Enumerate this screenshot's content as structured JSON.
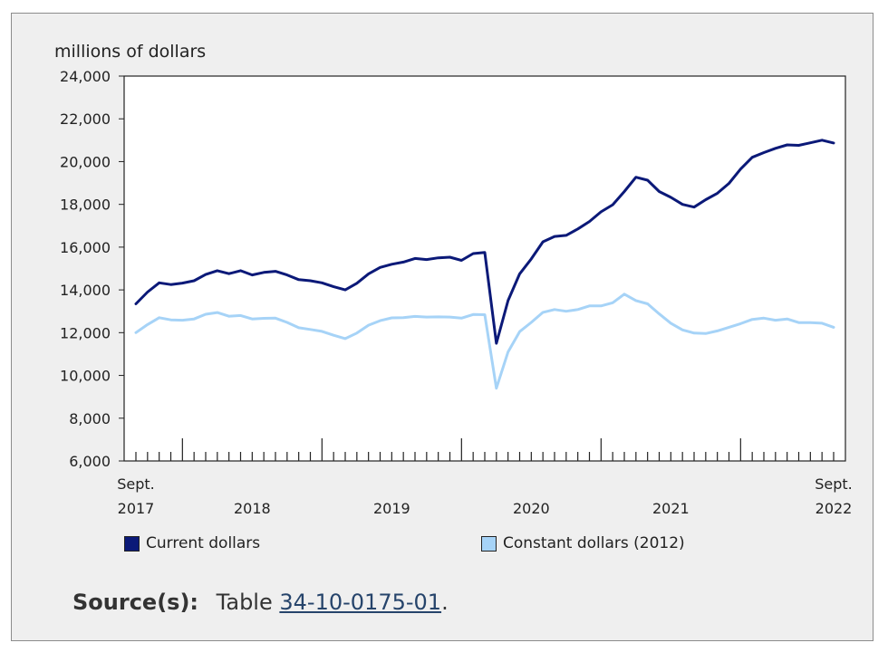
{
  "chart_data": {
    "type": "line",
    "ylabel": "millions of dollars",
    "ylim": [
      6000,
      24000
    ],
    "yticks": [
      6000,
      8000,
      10000,
      12000,
      14000,
      16000,
      18000,
      20000,
      22000,
      24000
    ],
    "ytick_labels": [
      "6,000",
      "8,000",
      "10,000",
      "12,000",
      "14,000",
      "16,000",
      "18,000",
      "20,000",
      "22,000",
      "24,000"
    ],
    "x": [
      "2017-09",
      "2017-10",
      "2017-11",
      "2017-12",
      "2018-01",
      "2018-02",
      "2018-03",
      "2018-04",
      "2018-05",
      "2018-06",
      "2018-07",
      "2018-08",
      "2018-09",
      "2018-10",
      "2018-11",
      "2018-12",
      "2019-01",
      "2019-02",
      "2019-03",
      "2019-04",
      "2019-05",
      "2019-06",
      "2019-07",
      "2019-08",
      "2019-09",
      "2019-10",
      "2019-11",
      "2019-12",
      "2020-01",
      "2020-02",
      "2020-03",
      "2020-04",
      "2020-05",
      "2020-06",
      "2020-07",
      "2020-08",
      "2020-09",
      "2020-10",
      "2020-11",
      "2020-12",
      "2021-01",
      "2021-02",
      "2021-03",
      "2021-04",
      "2021-05",
      "2021-06",
      "2021-07",
      "2021-08",
      "2021-09",
      "2021-10",
      "2021-11",
      "2021-12",
      "2022-01",
      "2022-02",
      "2022-03",
      "2022-04",
      "2022-05",
      "2022-06",
      "2022-07",
      "2022-08",
      "2022-09"
    ],
    "x_tick_labels": [
      {
        "line1": "Sept.",
        "line2": "2017"
      },
      {
        "line1": "",
        "line2": "2018"
      },
      {
        "line1": "",
        "line2": "2019"
      },
      {
        "line1": "",
        "line2": "2020"
      },
      {
        "line1": "",
        "line2": "2021"
      },
      {
        "line1": "Sept.",
        "line2": "2022"
      }
    ],
    "series": [
      {
        "name": "Current dollars",
        "color": "#0b1978",
        "values": [
          13350,
          13900,
          14330,
          14250,
          14320,
          14430,
          14720,
          14900,
          14760,
          14900,
          14700,
          14820,
          14870,
          14700,
          14480,
          14430,
          14330,
          14150,
          14000,
          14310,
          14750,
          15050,
          15200,
          15300,
          15470,
          15420,
          15500,
          15530,
          15380,
          15700,
          15750,
          11500,
          13500,
          14750,
          15450,
          16250,
          16500,
          16550,
          16850,
          17200,
          17650,
          17980,
          18600,
          19270,
          19130,
          18600,
          18330,
          18000,
          17870,
          18220,
          18520,
          18980,
          19650,
          20200,
          20420,
          20620,
          20780,
          20760,
          20880,
          21000,
          20870
        ]
      },
      {
        "name": "Constant dollars (2012)",
        "color": "#a6d3f7",
        "values": [
          12000,
          12380,
          12700,
          12600,
          12580,
          12640,
          12860,
          12940,
          12770,
          12800,
          12640,
          12670,
          12680,
          12480,
          12230,
          12150,
          12060,
          11880,
          11720,
          11980,
          12350,
          12560,
          12690,
          12700,
          12760,
          12730,
          12740,
          12730,
          12680,
          12850,
          12840,
          9400,
          11100,
          12050,
          12480,
          12950,
          13080,
          13000,
          13080,
          13250,
          13250,
          13400,
          13800,
          13500,
          13350,
          12880,
          12440,
          12130,
          11980,
          11960,
          12080,
          12250,
          12420,
          12620,
          12680,
          12580,
          12640,
          12470,
          12470,
          12440,
          12250
        ]
      }
    ],
    "grid": false,
    "legend_position": "bottom"
  },
  "legend": {
    "current_label": "Current dollars",
    "constant_label": "Constant dollars (2012)"
  },
  "source": {
    "label": "Source(s):",
    "prefix": "Table",
    "link_text": "34-10-0175-01",
    "suffix": "."
  }
}
